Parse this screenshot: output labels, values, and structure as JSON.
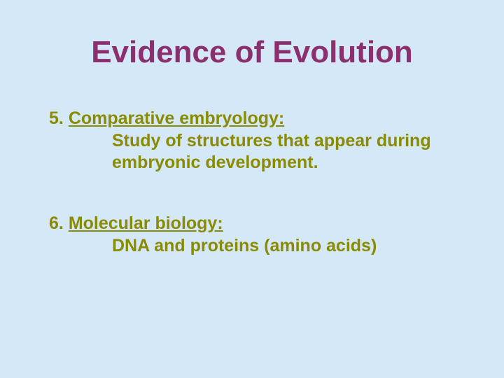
{
  "slide": {
    "background_color": "#d4e8f7",
    "title": "Evidence of Evolution",
    "title_color": "#8b2f6f",
    "title_fontsize": 44,
    "body_color": "#8b8b00",
    "body_fontsize": 25,
    "items": [
      {
        "number": "5.",
        "heading": "Comparative embryology:",
        "body": "Study of structures that appear during embryonic development."
      },
      {
        "number": "6.",
        "heading": "Molecular biology:",
        "body": "DNA and proteins (amino acids)"
      }
    ]
  }
}
